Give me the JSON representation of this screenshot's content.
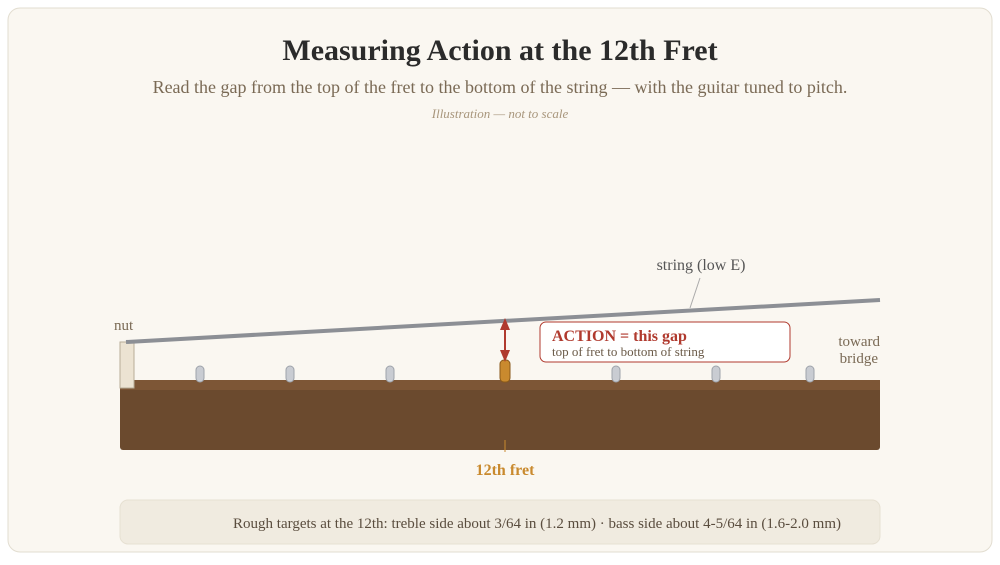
{
  "header": {
    "title": "Measuring Action at the 12th Fret",
    "subtitle": "Read the gap from the top of the fret to the bottom of the string — with the guitar tuned to pitch.",
    "note": "Illustration — not to scale"
  },
  "diagram": {
    "nut_label": "nut",
    "string_label": "string (low E)",
    "callout_title": "ACTION = this gap",
    "callout_sub": "top of fret to bottom of string",
    "bridge_label_1": "toward",
    "bridge_label_2": "bridge",
    "fret_label": "12th fret"
  },
  "footer": {
    "text": "Rough targets at the 12th: treble side about 3/64 in (1.2 mm) · bass side about 4-5/64 in (1.6-2.0 mm)"
  }
}
